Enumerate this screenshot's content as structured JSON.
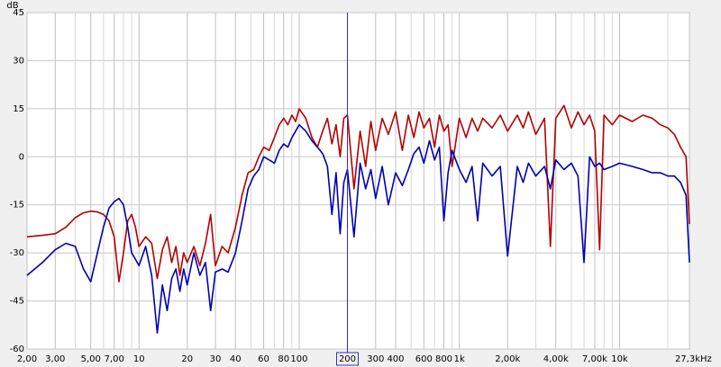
{
  "chart_data": {
    "type": "line",
    "y_label": "dB",
    "x_label": "Hz",
    "log_x": true,
    "grid": true,
    "cursor_x": 200,
    "xlim": [
      2,
      27300
    ],
    "ylim": [
      -60,
      45
    ],
    "yticks": [
      45,
      30,
      15,
      0,
      -15,
      -30,
      -45,
      -60
    ],
    "xticks": [
      {
        "value": 2,
        "label": "2,00"
      },
      {
        "value": 3,
        "label": "3,00"
      },
      {
        "value": 5,
        "label": "5,00"
      },
      {
        "value": 7,
        "label": "7,00"
      },
      10,
      20,
      30,
      40,
      60,
      80,
      100,
      200,
      300,
      400,
      600,
      800,
      {
        "value": 1000,
        "label": "1k"
      },
      {
        "value": 2000,
        "label": "2,00k"
      },
      {
        "value": 4000,
        "label": "4,00k"
      },
      {
        "value": 7000,
        "label": "7,00k"
      },
      {
        "value": 10000,
        "label": "10k"
      },
      {
        "value": 27300,
        "label": "27,3k"
      }
    ],
    "x_minor_ticks": [
      4,
      6,
      8,
      9,
      50,
      70,
      90,
      500,
      700,
      900,
      3000,
      5000,
      6000,
      8000,
      9000,
      20000
    ],
    "x": [
      2,
      2.5,
      3,
      3.5,
      4,
      4.5,
      5,
      5.5,
      6,
      6.5,
      7,
      7.5,
      8,
      8.5,
      9,
      9.5,
      10,
      11,
      12,
      13,
      14,
      15,
      16,
      17,
      18,
      19,
      20,
      22,
      24,
      26,
      28,
      30,
      33,
      36,
      40,
      44,
      48,
      52,
      56,
      60,
      65,
      70,
      75,
      80,
      85,
      90,
      95,
      100,
      110,
      120,
      130,
      140,
      150,
      160,
      170,
      180,
      190,
      200,
      220,
      240,
      260,
      280,
      300,
      330,
      360,
      400,
      440,
      480,
      520,
      560,
      600,
      650,
      700,
      750,
      800,
      850,
      900,
      1000,
      1100,
      1200,
      1300,
      1400,
      1600,
      1800,
      2000,
      2300,
      2500,
      2700,
      3000,
      3400,
      3700,
      4000,
      4500,
      5000,
      5500,
      6000,
      6500,
      7000,
      7500,
      8000,
      9000,
      10000,
      12000,
      14000,
      16000,
      18000,
      20000,
      22000,
      24000,
      26000,
      27300
    ],
    "series": [
      {
        "color": "#b40000",
        "values": [
          -25,
          -24.5,
          -24,
          -22,
          -19,
          -17.5,
          -17,
          -17.2,
          -18,
          -20,
          -25,
          -39,
          -30,
          -20,
          -18,
          -22,
          -28,
          -25,
          -27,
          -38,
          -29,
          -25,
          -33,
          -28,
          -37,
          -30,
          -33,
          -28,
          -34,
          -27,
          -18,
          -34,
          -28,
          -30,
          -22,
          -12,
          -5,
          -4,
          0,
          3,
          2,
          6,
          10,
          12,
          10,
          13,
          11,
          15,
          12,
          6,
          3,
          8,
          12,
          4,
          10,
          0,
          12,
          13,
          -10,
          8,
          -3,
          11,
          2,
          12,
          7,
          14,
          2,
          13,
          6,
          14,
          9,
          12,
          3,
          13,
          8,
          10,
          -3,
          12,
          6,
          12,
          8,
          12,
          9,
          13,
          8,
          13,
          9,
          14,
          7,
          12,
          -28,
          12,
          16,
          9,
          14,
          10,
          13,
          8,
          -29,
          13,
          10,
          13,
          11,
          13,
          12,
          10,
          9,
          7,
          3,
          0,
          -21
        ]
      },
      {
        "color": "#0000b0",
        "values": [
          -37,
          -33,
          -29,
          -27,
          -28,
          -35,
          -39,
          -30,
          -22,
          -16,
          -14,
          -13,
          -15,
          -22,
          -30,
          -32,
          -34,
          -28,
          -37,
          -55,
          -40,
          -48,
          -38,
          -35,
          -42,
          -35,
          -40,
          -30,
          -37,
          -33,
          -48,
          -36,
          -35,
          -36,
          -30,
          -20,
          -10,
          -6,
          -4,
          0,
          -1,
          -2,
          2,
          4,
          3,
          6,
          8,
          10,
          8,
          5,
          3,
          1,
          -3,
          -18,
          -5,
          -24,
          -8,
          -4,
          -25,
          -2,
          -10,
          -4,
          -13,
          -3,
          -15,
          -5,
          -9,
          -4,
          1,
          3,
          -2,
          5,
          -1,
          3,
          -20,
          -5,
          2,
          -4,
          -8,
          -3,
          -20,
          -2,
          -6,
          -3,
          -31,
          -3,
          -8,
          -2,
          -6,
          -3,
          -10,
          -1,
          -4,
          -2,
          -6,
          -33,
          0,
          -3,
          -2,
          -4,
          -3,
          -2,
          -3,
          -4,
          -5,
          -5,
          -6,
          -6,
          -8,
          -12,
          -33
        ]
      }
    ]
  }
}
